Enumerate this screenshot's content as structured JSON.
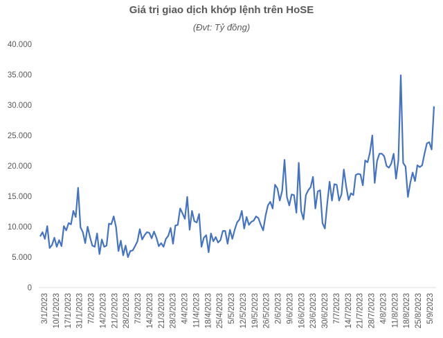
{
  "chart_data": {
    "type": "line",
    "title": "Giá trị giao dịch khớp lệnh trên HoSE",
    "subtitle": "(Đvt: Tỷ đồng)",
    "xlabel": "",
    "ylabel": "",
    "ylim": [
      0,
      40000
    ],
    "yticks": [
      0,
      5000,
      10000,
      15000,
      20000,
      25000,
      30000,
      35000,
      40000
    ],
    "ytick_labels": [
      "0",
      "5.000",
      "10.000",
      "15.000",
      "20.000",
      "25.000",
      "30.000",
      "35.000",
      "40.000"
    ],
    "xtick_labels": [
      "3/1/2023",
      "10/1/2023",
      "17/1/2023",
      "31/1/2023",
      "7/2/2023",
      "14/2/2023",
      "21/2/2023",
      "28/2/2023",
      "7/3/2023",
      "14/3/2023",
      "21/3/2023",
      "28/3/2023",
      "4/4/2023",
      "11/4/2023",
      "18/4/2023",
      "25/4/2023",
      "5/5/2023",
      "12/5/2023",
      "19/5/2023",
      "26/5/2023",
      "2/6/2023",
      "9/6/2023",
      "16/6/2023",
      "23/6/2023",
      "30/6/2023",
      "7/7/2023",
      "14/7/2023",
      "21/7/2023",
      "28/7/2023",
      "4/8/2023",
      "11/8/2023",
      "18/8/2023",
      "25/8/2023",
      "5/9/2023"
    ],
    "grid": false,
    "legend": "none",
    "line_color": "#4472C4",
    "series": [
      {
        "values": [
          8400,
          9100,
          8000,
          10100,
          6500,
          7000,
          8200,
          6700,
          7800,
          6800,
          10100,
          9400,
          10600,
          10400,
          12600,
          11600,
          16400,
          9900,
          9100,
          7300,
          10000,
          8300,
          6900,
          6700,
          8900,
          5500,
          7900,
          6700,
          6900,
          10500,
          10400,
          11700,
          9900,
          6000,
          7700,
          5300,
          6900,
          5000,
          6000,
          6100,
          6800,
          7600,
          9600,
          7900,
          8600,
          9100,
          9000,
          8100,
          9200,
          8200,
          6800,
          7300,
          6700,
          8000,
          8500,
          9800,
          7200,
          10200,
          10300,
          13000,
          12200,
          11300,
          14900,
          9500,
          12600,
          10900,
          10700,
          12100,
          6700,
          8200,
          8600,
          5800,
          8900,
          7600,
          8300,
          7400,
          7800,
          9300,
          9300,
          7200,
          9500,
          8000,
          9500,
          10700,
          11200,
          12600,
          9700,
          11600,
          10300,
          10800,
          11000,
          11700,
          11400,
          10300,
          9400,
          11800,
          13500,
          14100,
          13000,
          16900,
          16300,
          14300,
          15900,
          21000,
          14900,
          13500,
          15300,
          15200,
          12300,
          20500,
          12600,
          11200,
          15200,
          16000,
          16500,
          18200,
          13000,
          15800,
          16000,
          10600,
          9700,
          13800,
          17400,
          14300,
          17000,
          16900,
          14300,
          15300,
          19400,
          16600,
          14400,
          15500,
          15200,
          18500,
          18700,
          18600,
          16800,
          20900,
          20600,
          22200,
          25000,
          17200,
          20800,
          22000,
          22000,
          21600,
          20000,
          19700,
          20400,
          22000,
          17900,
          21000,
          34900,
          20500,
          19900,
          14900,
          17200,
          18900,
          17500,
          20100,
          19800,
          20100,
          22000,
          23700,
          23900,
          22700,
          29800
        ]
      }
    ]
  }
}
